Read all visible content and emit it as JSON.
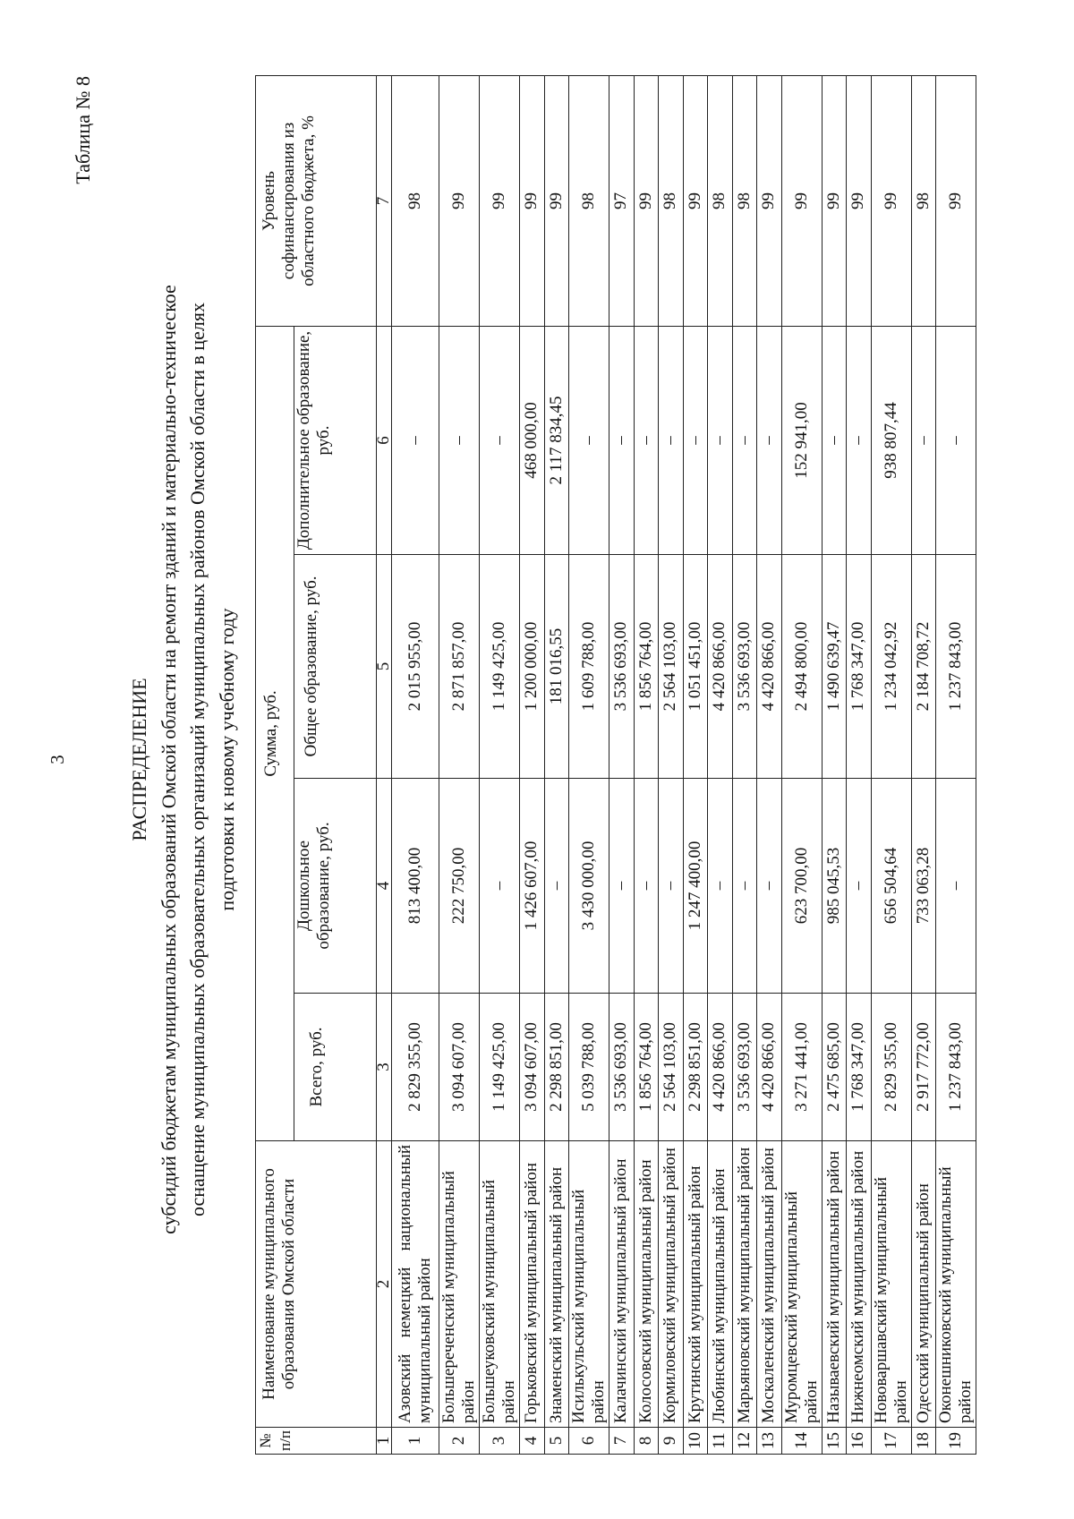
{
  "page_number": "3",
  "table_label": "Таблица № 8",
  "title": {
    "heading": "РАСПРЕДЕЛЕНИЕ",
    "line1": "субсидий бюджетам муниципальных образований Омской области на ремонт зданий и материально-техническое",
    "line2": "оснащение муниципальных образовательных организаций муниципальных районов Омской области в целях",
    "line3": "подготовки к новому учебному году"
  },
  "table": {
    "headers": {
      "no": "№ п/п",
      "name": "Наименование муниципального образования Омской области",
      "sum_group": "Сумма, руб.",
      "total": "Всего, руб.",
      "preschool": "Дошкольное образование, руб.",
      "general": "Общее образование, руб.",
      "additional": "Дополнительное образование, руб.",
      "level": "Уровень софинансирования из областного бюджета, %"
    },
    "column_numbers": [
      "1",
      "2",
      "3",
      "4",
      "5",
      "6",
      "7"
    ],
    "rows": [
      {
        "no": "1",
        "name": "Азовский немецкий национальный муниципальный район",
        "total": "2 829 355,00",
        "preschool": "813 400,00",
        "general": "2 015 955,00",
        "additional": "–",
        "level": "98"
      },
      {
        "no": "2",
        "name": "Большереченский муниципальный район",
        "total": "3 094 607,00",
        "preschool": "222 750,00",
        "general": "2 871 857,00",
        "additional": "–",
        "level": "99"
      },
      {
        "no": "3",
        "name": "Большеуковский муниципальный район",
        "total": "1 149 425,00",
        "preschool": "–",
        "general": "1 149 425,00",
        "additional": "–",
        "level": "99"
      },
      {
        "no": "4",
        "name": "Горьковский муниципальный район",
        "total": "3 094 607,00",
        "preschool": "1 426 607,00",
        "general": "1 200 000,00",
        "additional": "468 000,00",
        "level": "99"
      },
      {
        "no": "5",
        "name": "Знаменский муниципальный район",
        "total": "2 298 851,00",
        "preschool": "–",
        "general": "181 016,55",
        "additional": "2 117 834,45",
        "level": "99"
      },
      {
        "no": "6",
        "name": "Исилькульский муниципальный район",
        "total": "5 039 788,00",
        "preschool": "3 430 000,00",
        "general": "1 609 788,00",
        "additional": "–",
        "level": "98"
      },
      {
        "no": "7",
        "name": "Калачинский муниципальный район",
        "total": "3 536 693,00",
        "preschool": "–",
        "general": "3 536 693,00",
        "additional": "–",
        "level": "97"
      },
      {
        "no": "8",
        "name": "Колосовский муниципальный район",
        "total": "1 856 764,00",
        "preschool": "–",
        "general": "1 856 764,00",
        "additional": "–",
        "level": "99"
      },
      {
        "no": "9",
        "name": "Кормиловский муниципальный район",
        "total": "2 564 103,00",
        "preschool": "–",
        "general": "2 564 103,00",
        "additional": "–",
        "level": "98"
      },
      {
        "no": "10",
        "name": "Крутинский муниципальный район",
        "total": "2 298 851,00",
        "preschool": "1 247 400,00",
        "general": "1 051 451,00",
        "additional": "–",
        "level": "99"
      },
      {
        "no": "11",
        "name": "Любинский муниципальный район",
        "total": "4 420 866,00",
        "preschool": "–",
        "general": "4 420 866,00",
        "additional": "–",
        "level": "98"
      },
      {
        "no": "12",
        "name": "Марьяновский муниципальный район",
        "total": "3 536 693,00",
        "preschool": "–",
        "general": "3 536 693,00",
        "additional": "–",
        "level": "98"
      },
      {
        "no": "13",
        "name": "Москаленский муниципальный район",
        "total": "4 420 866,00",
        "preschool": "–",
        "general": "4 420 866,00",
        "additional": "–",
        "level": "99"
      },
      {
        "no": "14",
        "name": "Муромцевский муниципальный район",
        "total": "3 271 441,00",
        "preschool": "623 700,00",
        "general": "2 494 800,00",
        "additional": "152 941,00",
        "level": "99"
      },
      {
        "no": "15",
        "name": "Называевский муниципальный район",
        "total": "2 475 685,00",
        "preschool": "985 045,53",
        "general": "1 490 639,47",
        "additional": "–",
        "level": "99"
      },
      {
        "no": "16",
        "name": "Нижнеомский муниципальный район",
        "total": "1 768 347,00",
        "preschool": "–",
        "general": "1 768 347,00",
        "additional": "–",
        "level": "99"
      },
      {
        "no": "17",
        "name": "Нововаршавский муниципальный район",
        "total": "2 829 355,00",
        "preschool": "656 504,64",
        "general": "1 234 042,92",
        "additional": "938 807,44",
        "level": "99"
      },
      {
        "no": "18",
        "name": "Одесский муниципальный район",
        "total": "2 917 772,00",
        "preschool": "733 063,28",
        "general": "2 184 708,72",
        "additional": "–",
        "level": "98"
      },
      {
        "no": "19",
        "name": "Оконешниковский муниципальный район",
        "total": "1 237 843,00",
        "preschool": "–",
        "general": "1 237 843,00",
        "additional": "–",
        "level": "99"
      }
    ]
  }
}
